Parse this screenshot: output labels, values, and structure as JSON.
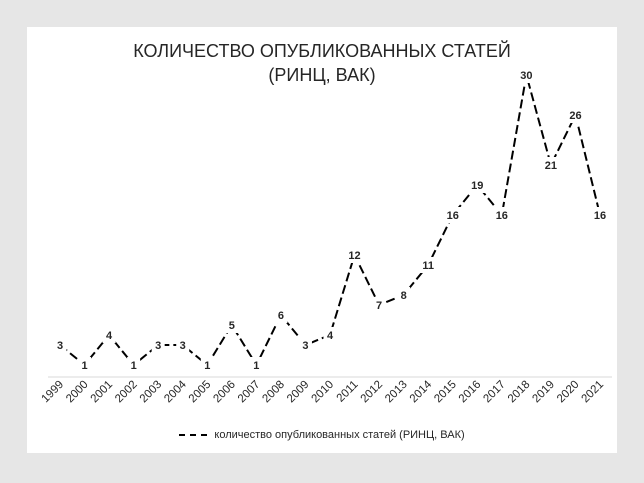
{
  "chart_data": {
    "type": "line",
    "title_line1": "КОЛИЧЕСТВО ОПУБЛИКОВАННЫХ СТАТЕЙ",
    "title_line2": "(РИНЦ, ВАК)",
    "categories": [
      "1999",
      "2000",
      "2001",
      "2002",
      "2003",
      "2004",
      "2005",
      "2006",
      "2007",
      "2008",
      "2009",
      "2010",
      "2011",
      "2012",
      "2013",
      "2014",
      "2015",
      "2016",
      "2017",
      "2018",
      "2019",
      "2020",
      "2021"
    ],
    "series": [
      {
        "name": "количество опубликованных статей (РИНЦ, ВАК)",
        "values": [
          3,
          1,
          4,
          1,
          3,
          3,
          1,
          5,
          1,
          6,
          3,
          4,
          12,
          7,
          8,
          11,
          16,
          19,
          16,
          30,
          21,
          26,
          16
        ],
        "color": "#000000",
        "line_style": "dashed"
      }
    ],
    "ylim": [
      0,
      32
    ],
    "grid": false,
    "data_labels": true,
    "legend_position": "bottom"
  }
}
